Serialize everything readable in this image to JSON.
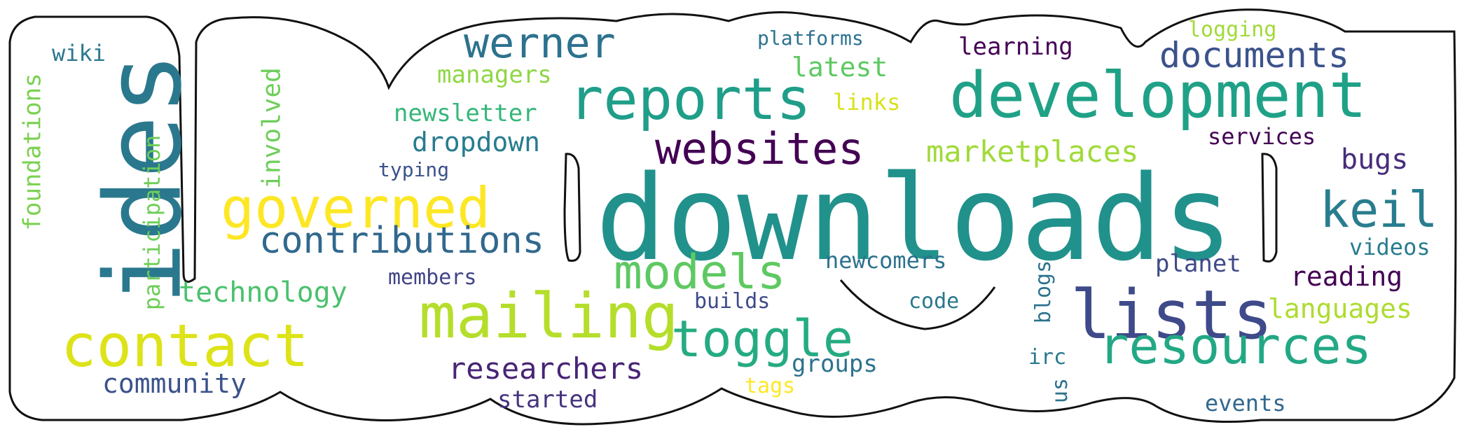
{
  "words": [
    {
      "text": "downloads",
      "color": "#21918c"
    },
    {
      "text": "ides",
      "color": "#2a788e"
    },
    {
      "text": "development",
      "color": "#1fa187"
    },
    {
      "text": "mailing",
      "color": "#b5de2b"
    },
    {
      "text": "lists",
      "color": "#3e4a89"
    },
    {
      "text": "contact",
      "color": "#dde318"
    },
    {
      "text": "reports",
      "color": "#1f9e89"
    },
    {
      "text": "resources",
      "color": "#22a884"
    },
    {
      "text": "governed",
      "color": "#fde725"
    },
    {
      "text": "websites",
      "color": "#440154"
    },
    {
      "text": "toggle",
      "color": "#25ab82"
    },
    {
      "text": "models",
      "color": "#5ec962"
    },
    {
      "text": "werner",
      "color": "#2c728e"
    },
    {
      "text": "contributions",
      "color": "#31688e"
    },
    {
      "text": "keil",
      "color": "#287d8e"
    },
    {
      "text": "documents",
      "color": "#3b528b"
    },
    {
      "text": "marketplaces",
      "color": "#a0da39"
    },
    {
      "text": "researchers",
      "color": "#482475"
    },
    {
      "text": "community",
      "color": "#3b528b"
    },
    {
      "text": "technology",
      "color": "#4ac16d"
    },
    {
      "text": "languages",
      "color": "#addc30"
    },
    {
      "text": "dropdown",
      "color": "#287c8e"
    },
    {
      "text": "latest",
      "color": "#5ec962"
    },
    {
      "text": "started",
      "color": "#46337e"
    },
    {
      "text": "newsletter",
      "color": "#35b779"
    },
    {
      "text": "managers",
      "color": "#8fd744"
    },
    {
      "text": "reading",
      "color": "#440154"
    },
    {
      "text": "foundations",
      "color": "#7ad151"
    },
    {
      "text": "participation",
      "color": "#6ece58"
    },
    {
      "text": "involved",
      "color": "#6ece58"
    },
    {
      "text": "learning",
      "color": "#440154"
    },
    {
      "text": "newcomers",
      "color": "#2c728e"
    },
    {
      "text": "members",
      "color": "#414487"
    },
    {
      "text": "planet",
      "color": "#3e4a89"
    },
    {
      "text": "groups",
      "color": "#2c728e"
    },
    {
      "text": "bugs",
      "color": "#472d7b"
    },
    {
      "text": "videos",
      "color": "#287c8e"
    },
    {
      "text": "services",
      "color": "#440154"
    },
    {
      "text": "events",
      "color": "#31688e"
    },
    {
      "text": "blogs",
      "color": "#2c728e"
    },
    {
      "text": "wiki",
      "color": "#2a788e"
    },
    {
      "text": "platforms",
      "color": "#2c728e"
    },
    {
      "text": "links",
      "color": "#d8e219"
    },
    {
      "text": "builds",
      "color": "#3e4a89"
    },
    {
      "text": "code",
      "color": "#2a788e"
    },
    {
      "text": "typing",
      "color": "#3b528b"
    },
    {
      "text": "irc",
      "color": "#2a788e"
    },
    {
      "text": "tags",
      "color": "#fde725"
    },
    {
      "text": "us",
      "color": "#2c728e"
    },
    {
      "text": "logging",
      "color": "#a0da39"
    }
  ]
}
